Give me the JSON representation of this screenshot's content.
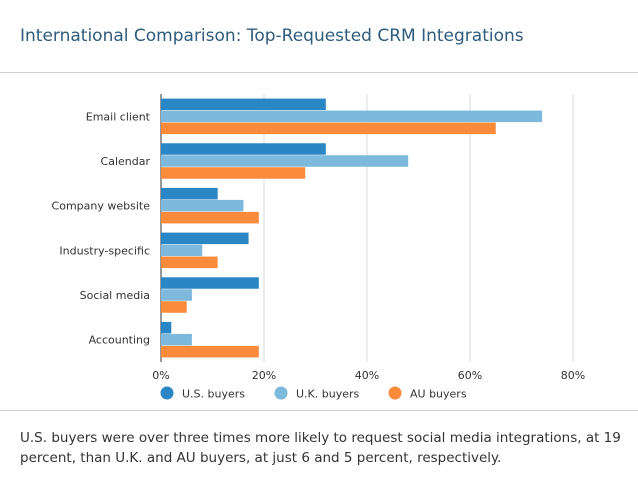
{
  "title": "International Comparison: Top-Requested CRM Integrations",
  "caption": "U.S. buyers were over three times more likely to request social media integrations, at 19 percent, than U.K. and AU buyers, at just 6 and 5 percent, respectively.",
  "chart_data": {
    "type": "bar",
    "orientation": "horizontal",
    "categories": [
      "Email client",
      "Calendar",
      "Company website",
      "Industry-specific",
      "Social media",
      "Accounting"
    ],
    "series": [
      {
        "name": "U.S. buyers",
        "color": "#2a86c4",
        "values": [
          32,
          32,
          11,
          17,
          19,
          2
        ]
      },
      {
        "name": "U.K. buyers",
        "color": "#7db9dc",
        "values": [
          74,
          48,
          16,
          8,
          6,
          6
        ]
      },
      {
        "name": "AU buyers",
        "color": "#fb8b3b",
        "values": [
          65,
          28,
          19,
          11,
          5,
          19
        ]
      }
    ],
    "x_ticks": [
      "0%",
      "20%",
      "40%",
      "60%",
      "80%"
    ],
    "xlim": [
      0,
      80
    ],
    "unit": "percent",
    "grid": true,
    "legend_position": "bottom"
  }
}
